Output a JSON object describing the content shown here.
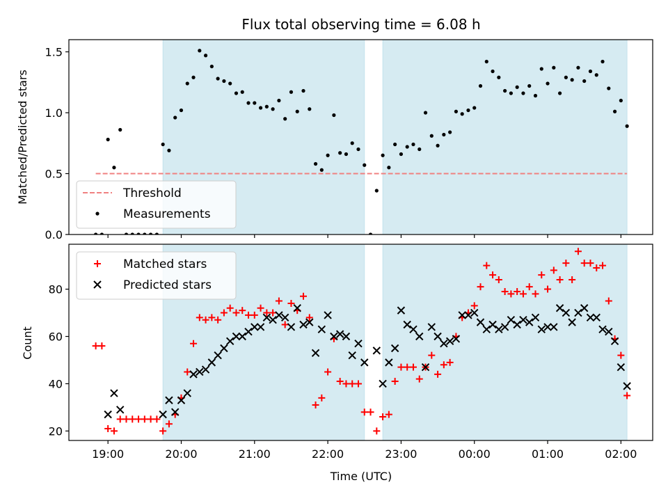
{
  "chart_data": [
    {
      "type": "scatter",
      "title": "Flux total observing time = 6.08 h",
      "ylabel": "Matched/Predicted stars",
      "xlabel": "",
      "ylim": [
        0,
        1.6
      ],
      "yticks": [
        0.0,
        0.5,
        1.0,
        1.5
      ],
      "ytick_labels": [
        "0.0",
        "0.5",
        "1.0",
        "1.5"
      ],
      "legend_placement": "lower-left",
      "shaded_intervals": [
        [
          "19:45",
          "22:30"
        ],
        [
          "22:45",
          "02:05"
        ]
      ],
      "series": [
        {
          "name": "Threshold",
          "style": "dashed-line",
          "color": "#f08080",
          "points": [
            [
              "18:50",
              0.5
            ],
            [
              "02:05",
              0.5
            ]
          ]
        },
        {
          "name": "Measurements",
          "style": "dot",
          "color": "#000000",
          "points": [
            [
              "18:50",
              0.0
            ],
            [
              "18:55",
              0.0
            ],
            [
              "19:00",
              0.78
            ],
            [
              "19:05",
              0.55
            ],
            [
              "19:10",
              0.86
            ],
            [
              "19:15",
              0.0
            ],
            [
              "19:20",
              0.0
            ],
            [
              "19:25",
              0.0
            ],
            [
              "19:30",
              0.0
            ],
            [
              "19:35",
              0.0
            ],
            [
              "19:40",
              0.0
            ],
            [
              "19:45",
              0.74
            ],
            [
              "19:50",
              0.69
            ],
            [
              "19:55",
              0.96
            ],
            [
              "20:00",
              1.02
            ],
            [
              "20:05",
              1.24
            ],
            [
              "20:10",
              1.29
            ],
            [
              "20:15",
              1.51
            ],
            [
              "20:20",
              1.47
            ],
            [
              "20:25",
              1.38
            ],
            [
              "20:30",
              1.28
            ],
            [
              "20:35",
              1.26
            ],
            [
              "20:40",
              1.24
            ],
            [
              "20:45",
              1.16
            ],
            [
              "20:50",
              1.17
            ],
            [
              "20:55",
              1.08
            ],
            [
              "21:00",
              1.08
            ],
            [
              "21:05",
              1.04
            ],
            [
              "21:10",
              1.05
            ],
            [
              "21:15",
              1.03
            ],
            [
              "21:20",
              1.1
            ],
            [
              "21:25",
              0.95
            ],
            [
              "21:30",
              1.17
            ],
            [
              "21:35",
              1.01
            ],
            [
              "21:40",
              1.18
            ],
            [
              "21:45",
              1.03
            ],
            [
              "21:50",
              0.58
            ],
            [
              "21:55",
              0.53
            ],
            [
              "22:00",
              0.65
            ],
            [
              "22:05",
              0.98
            ],
            [
              "22:10",
              0.67
            ],
            [
              "22:15",
              0.66
            ],
            [
              "22:20",
              0.75
            ],
            [
              "22:25",
              0.7
            ],
            [
              "22:30",
              0.57
            ],
            [
              "22:35",
              0.0
            ],
            [
              "22:40",
              0.36
            ],
            [
              "22:45",
              0.65
            ],
            [
              "22:50",
              0.55
            ],
            [
              "22:55",
              0.74
            ],
            [
              "23:00",
              0.66
            ],
            [
              "23:05",
              0.72
            ],
            [
              "23:10",
              0.74
            ],
            [
              "23:15",
              0.7
            ],
            [
              "23:20",
              1.0
            ],
            [
              "23:25",
              0.81
            ],
            [
              "23:30",
              0.73
            ],
            [
              "23:35",
              0.82
            ],
            [
              "23:40",
              0.84
            ],
            [
              "23:45",
              1.01
            ],
            [
              "23:50",
              0.99
            ],
            [
              "23:55",
              1.02
            ],
            [
              "00:00",
              1.04
            ],
            [
              "00:05",
              1.22
            ],
            [
              "00:10",
              1.42
            ],
            [
              "00:15",
              1.34
            ],
            [
              "00:20",
              1.29
            ],
            [
              "00:25",
              1.18
            ],
            [
              "00:30",
              1.16
            ],
            [
              "00:35",
              1.21
            ],
            [
              "00:40",
              1.16
            ],
            [
              "00:45",
              1.22
            ],
            [
              "00:50",
              1.14
            ],
            [
              "00:55",
              1.36
            ],
            [
              "01:00",
              1.24
            ],
            [
              "01:05",
              1.37
            ],
            [
              "01:10",
              1.16
            ],
            [
              "01:15",
              1.29
            ],
            [
              "01:20",
              1.27
            ],
            [
              "01:25",
              1.37
            ],
            [
              "01:30",
              1.26
            ],
            [
              "01:35",
              1.34
            ],
            [
              "01:40",
              1.31
            ],
            [
              "01:45",
              1.42
            ],
            [
              "01:50",
              1.2
            ],
            [
              "01:55",
              1.01
            ],
            [
              "02:00",
              1.1
            ],
            [
              "02:05",
              0.89
            ]
          ]
        }
      ]
    },
    {
      "type": "scatter",
      "title": "",
      "ylabel": "Count",
      "xlabel": "Time (UTC)",
      "ylim": [
        16,
        99
      ],
      "yticks": [
        20,
        40,
        60,
        80
      ],
      "ytick_labels": [
        "20",
        "40",
        "60",
        "80"
      ],
      "x_tick_labels": [
        "19:00",
        "20:00",
        "21:00",
        "22:00",
        "23:00",
        "00:00",
        "01:00",
        "02:00"
      ],
      "legend_placement": "upper-left",
      "shaded_intervals": [
        [
          "19:45",
          "22:30"
        ],
        [
          "22:45",
          "02:05"
        ]
      ],
      "series": [
        {
          "name": "Matched stars",
          "marker": "plus",
          "color": "#ff0000",
          "points": [
            [
              "18:50",
              56
            ],
            [
              "18:55",
              56
            ],
            [
              "19:00",
              21
            ],
            [
              "19:05",
              20
            ],
            [
              "19:10",
              25
            ],
            [
              "19:15",
              25
            ],
            [
              "19:20",
              25
            ],
            [
              "19:25",
              25
            ],
            [
              "19:30",
              25
            ],
            [
              "19:35",
              25
            ],
            [
              "19:40",
              25
            ],
            [
              "19:45",
              20
            ],
            [
              "19:50",
              23
            ],
            [
              "19:55",
              27
            ],
            [
              "20:00",
              34
            ],
            [
              "20:05",
              45
            ],
            [
              "20:10",
              57
            ],
            [
              "20:15",
              68
            ],
            [
              "20:20",
              67
            ],
            [
              "20:25",
              68
            ],
            [
              "20:30",
              67
            ],
            [
              "20:35",
              70
            ],
            [
              "20:40",
              72
            ],
            [
              "20:45",
              70
            ],
            [
              "20:50",
              71
            ],
            [
              "20:55",
              69
            ],
            [
              "21:00",
              69
            ],
            [
              "21:05",
              72
            ],
            [
              "21:10",
              70
            ],
            [
              "21:15",
              70
            ],
            [
              "21:20",
              75
            ],
            [
              "21:25",
              65
            ],
            [
              "21:30",
              74
            ],
            [
              "21:35",
              71
            ],
            [
              "21:40",
              77
            ],
            [
              "21:45",
              68
            ],
            [
              "21:50",
              31
            ],
            [
              "21:55",
              34
            ],
            [
              "22:00",
              45
            ],
            [
              "22:05",
              59
            ],
            [
              "22:10",
              41
            ],
            [
              "22:15",
              40
            ],
            [
              "22:20",
              40
            ],
            [
              "22:25",
              40
            ],
            [
              "22:30",
              28
            ],
            [
              "22:35",
              28
            ],
            [
              "22:40",
              20
            ],
            [
              "22:45",
              26
            ],
            [
              "22:50",
              27
            ],
            [
              "22:55",
              41
            ],
            [
              "23:00",
              47
            ],
            [
              "23:05",
              47
            ],
            [
              "23:10",
              47
            ],
            [
              "23:15",
              42
            ],
            [
              "23:20",
              47
            ],
            [
              "23:25",
              52
            ],
            [
              "23:30",
              44
            ],
            [
              "23:35",
              48
            ],
            [
              "23:40",
              49
            ],
            [
              "23:45",
              60
            ],
            [
              "23:50",
              68
            ],
            [
              "23:55",
              70
            ],
            [
              "00:00",
              73
            ],
            [
              "00:05",
              81
            ],
            [
              "00:10",
              90
            ],
            [
              "00:15",
              86
            ],
            [
              "00:20",
              84
            ],
            [
              "00:25",
              79
            ],
            [
              "00:30",
              78
            ],
            [
              "00:35",
              79
            ],
            [
              "00:40",
              78
            ],
            [
              "00:45",
              81
            ],
            [
              "00:50",
              78
            ],
            [
              "00:55",
              86
            ],
            [
              "01:00",
              80
            ],
            [
              "01:05",
              88
            ],
            [
              "01:10",
              84
            ],
            [
              "01:15",
              91
            ],
            [
              "01:20",
              84
            ],
            [
              "01:25",
              96
            ],
            [
              "01:30",
              91
            ],
            [
              "01:35",
              91
            ],
            [
              "01:40",
              89
            ],
            [
              "01:45",
              90
            ],
            [
              "01:50",
              75
            ],
            [
              "01:55",
              59
            ],
            [
              "02:00",
              52
            ],
            [
              "02:05",
              35
            ]
          ]
        },
        {
          "name": "Predicted stars",
          "marker": "x",
          "color": "#000000",
          "points": [
            [
              "19:00",
              27
            ],
            [
              "19:05",
              36
            ],
            [
              "19:10",
              29
            ],
            [
              "19:45",
              27
            ],
            [
              "19:50",
              33
            ],
            [
              "19:55",
              28
            ],
            [
              "20:00",
              33
            ],
            [
              "20:05",
              36
            ],
            [
              "20:10",
              44
            ],
            [
              "20:15",
              45
            ],
            [
              "20:20",
              46
            ],
            [
              "20:25",
              49
            ],
            [
              "20:30",
              52
            ],
            [
              "20:35",
              55
            ],
            [
              "20:40",
              58
            ],
            [
              "20:45",
              60
            ],
            [
              "20:50",
              60
            ],
            [
              "20:55",
              62
            ],
            [
              "21:00",
              64
            ],
            [
              "21:05",
              64
            ],
            [
              "21:10",
              68
            ],
            [
              "21:15",
              67
            ],
            [
              "21:20",
              69
            ],
            [
              "21:25",
              68
            ],
            [
              "21:30",
              64
            ],
            [
              "21:35",
              72
            ],
            [
              "21:40",
              65
            ],
            [
              "21:45",
              66
            ],
            [
              "21:50",
              53
            ],
            [
              "21:55",
              63
            ],
            [
              "22:00",
              69
            ],
            [
              "22:05",
              60
            ],
            [
              "22:10",
              61
            ],
            [
              "22:15",
              60
            ],
            [
              "22:20",
              52
            ],
            [
              "22:25",
              57
            ],
            [
              "22:30",
              49
            ],
            [
              "22:40",
              54
            ],
            [
              "22:45",
              40
            ],
            [
              "22:50",
              49
            ],
            [
              "22:55",
              55
            ],
            [
              "23:00",
              71
            ],
            [
              "23:05",
              65
            ],
            [
              "23:10",
              63
            ],
            [
              "23:15",
              60
            ],
            [
              "23:20",
              47
            ],
            [
              "23:25",
              64
            ],
            [
              "23:30",
              60
            ],
            [
              "23:35",
              57
            ],
            [
              "23:40",
              58
            ],
            [
              "23:45",
              59
            ],
            [
              "23:50",
              69
            ],
            [
              "23:55",
              69
            ],
            [
              "00:00",
              70
            ],
            [
              "00:05",
              66
            ],
            [
              "00:10",
              63
            ],
            [
              "00:15",
              65
            ],
            [
              "00:20",
              63
            ],
            [
              "00:25",
              64
            ],
            [
              "00:30",
              67
            ],
            [
              "00:35",
              65
            ],
            [
              "00:40",
              67
            ],
            [
              "00:45",
              66
            ],
            [
              "00:50",
              68
            ],
            [
              "00:55",
              63
            ],
            [
              "01:00",
              64
            ],
            [
              "01:05",
              64
            ],
            [
              "01:10",
              72
            ],
            [
              "01:15",
              70
            ],
            [
              "01:20",
              66
            ],
            [
              "01:25",
              70
            ],
            [
              "01:30",
              72
            ],
            [
              "01:35",
              68
            ],
            [
              "01:40",
              68
            ],
            [
              "01:45",
              63
            ],
            [
              "01:50",
              62
            ],
            [
              "01:55",
              58
            ],
            [
              "02:00",
              47
            ],
            [
              "02:05",
              39
            ]
          ]
        }
      ]
    }
  ]
}
